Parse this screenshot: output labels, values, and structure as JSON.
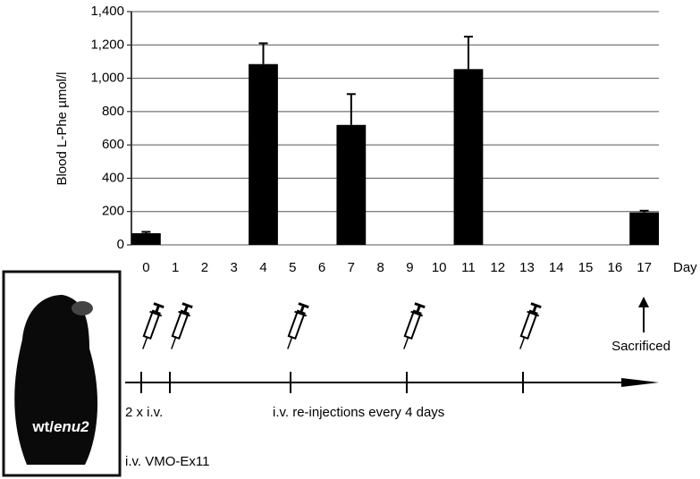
{
  "chart_data": {
    "type": "bar",
    "y_label": "Blood L-Phe µmol/l",
    "x_label": "Day",
    "categories": [
      "0",
      "1",
      "2",
      "3",
      "4",
      "5",
      "6",
      "7",
      "8",
      "9",
      "10",
      "11",
      "12",
      "13",
      "14",
      "15",
      "16",
      "17"
    ],
    "values": [
      70,
      0,
      0,
      0,
      1085,
      0,
      0,
      720,
      0,
      0,
      0,
      1055,
      0,
      0,
      0,
      0,
      0,
      195
    ],
    "errors": [
      8,
      0,
      0,
      0,
      125,
      0,
      0,
      185,
      0,
      0,
      0,
      195,
      0,
      0,
      0,
      0,
      0,
      10
    ],
    "color": "#000000",
    "ylim": [
      0,
      1400
    ],
    "yticks": [
      0,
      200,
      400,
      600,
      800,
      {
        "value": 1000,
        "label": "1,000"
      },
      {
        "value": 1200,
        "label": "1,200"
      },
      {
        "value": 1400,
        "label": "1,400"
      }
    ],
    "grid": true,
    "annotations": {
      "end_label": "Sacrificed",
      "first_label": "2 x i.v.",
      "repeat_label": "i.v. re-injections every 4 days",
      "agent_label": "i.v. VMO-Ex11"
    },
    "image_label": {
      "prefix": "wt/",
      "italic": "enu2"
    }
  }
}
